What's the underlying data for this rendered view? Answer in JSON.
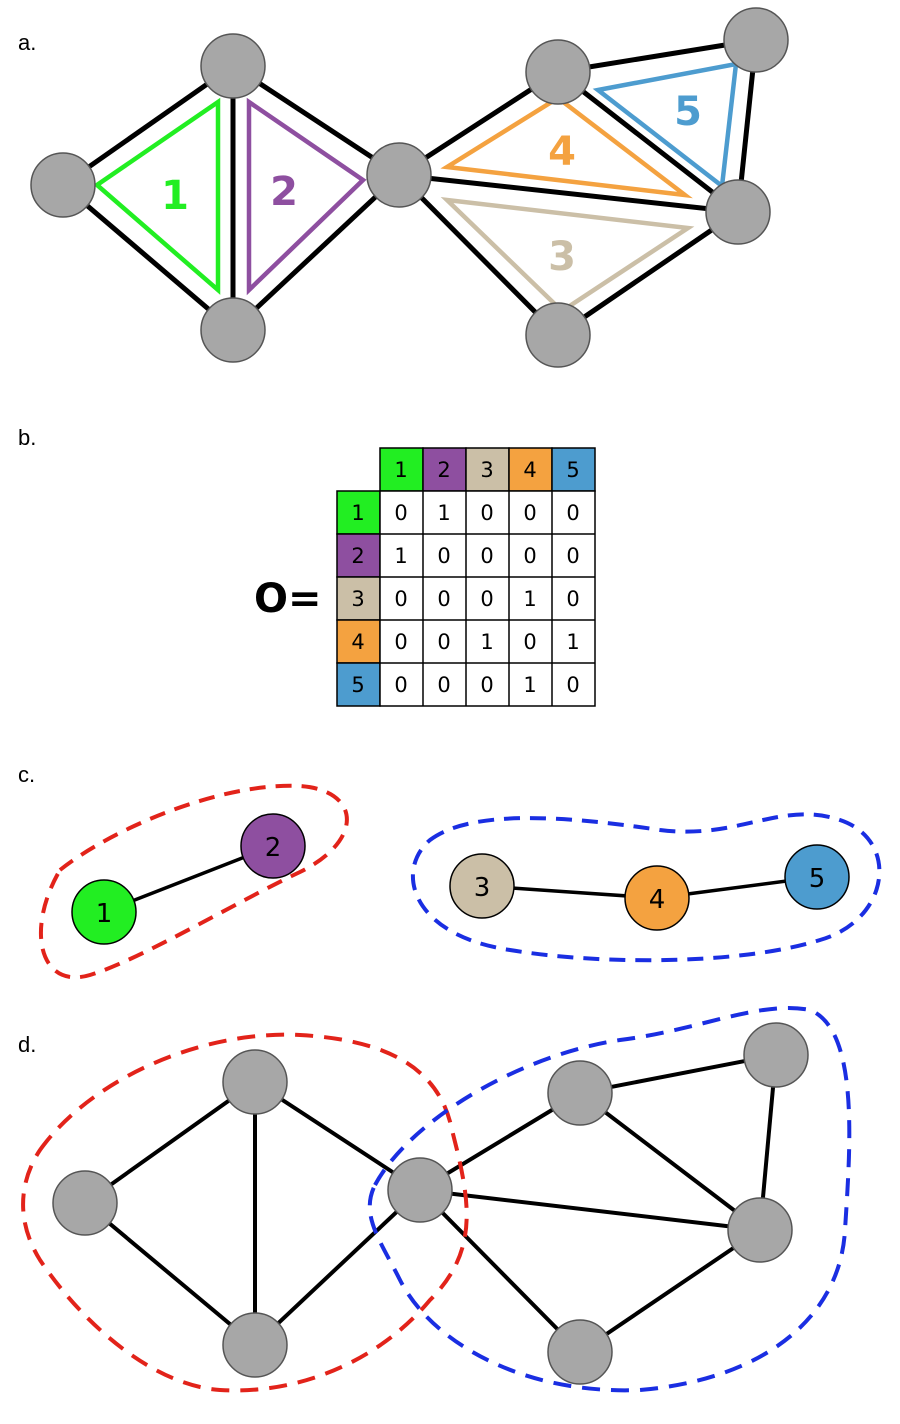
{
  "panels": {
    "a": "a.",
    "b": "b.",
    "c": "c.",
    "d": "d."
  },
  "triangles": [
    {
      "label": "1",
      "color": "#22ee22"
    },
    {
      "label": "2",
      "color": "#8e4fa0"
    },
    {
      "label": "3",
      "color": "#cbbfa7"
    },
    {
      "label": "4",
      "color": "#f4a240"
    },
    {
      "label": "5",
      "color": "#4d9ccf"
    }
  ],
  "matrix": {
    "symbol": "O=",
    "headers": [
      "1",
      "2",
      "3",
      "4",
      "5"
    ],
    "colors": [
      "#22ee22",
      "#8e4fa0",
      "#cbbfa7",
      "#f4a240",
      "#4d9ccf"
    ],
    "rows": [
      [
        "0",
        "1",
        "0",
        "0",
        "0"
      ],
      [
        "1",
        "0",
        "0",
        "0",
        "0"
      ],
      [
        "0",
        "0",
        "0",
        "1",
        "0"
      ],
      [
        "0",
        "0",
        "1",
        "0",
        "1"
      ],
      [
        "0",
        "0",
        "0",
        "1",
        "0"
      ]
    ]
  },
  "communities": {
    "nodes": [
      "1",
      "2",
      "3",
      "4",
      "5"
    ],
    "node_colors": [
      "#22ee22",
      "#8e4fa0",
      "#cbbfa7",
      "#f4a240",
      "#4d9ccf"
    ],
    "group_colors": [
      "#e2231a",
      "#1a2ee2"
    ]
  },
  "colors": {
    "node_fill": "#a7a7a7",
    "edge": "#000000"
  }
}
